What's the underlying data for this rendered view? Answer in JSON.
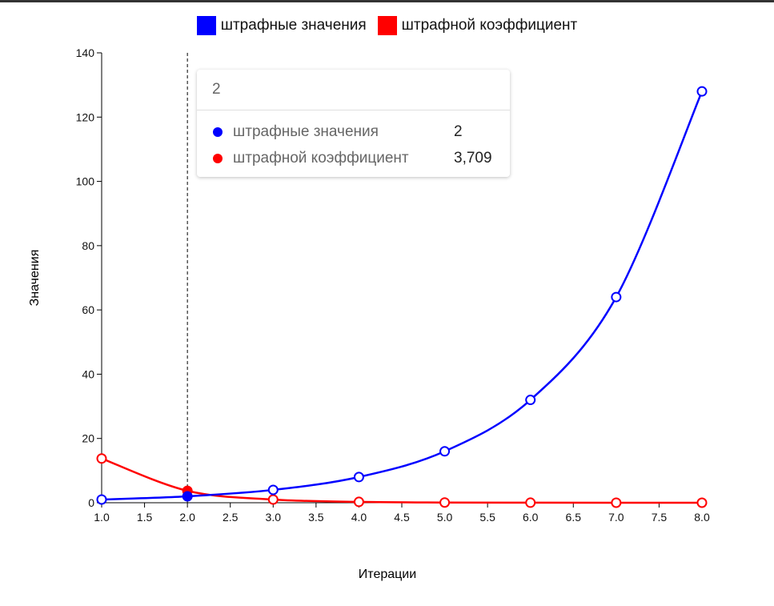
{
  "legend": {
    "series0": {
      "label": "штрафные значения",
      "color": "#0000ff"
    },
    "series1": {
      "label": "штрафной коэффициент",
      "color": "#ff0000"
    }
  },
  "tooltip": {
    "title": "2",
    "rows": [
      {
        "label": "штрафные значения",
        "value": "2",
        "color": "#0000ff"
      },
      {
        "label": "штрафной коэффициент",
        "value": "3,709",
        "color": "#ff0000"
      }
    ]
  },
  "chart_data": {
    "type": "line",
    "xlabel": "Итерации",
    "ylabel": "Значения",
    "xlim": [
      1.0,
      8.0
    ],
    "ylim": [
      0,
      140
    ],
    "x_ticks": [
      "1.0",
      "1.5",
      "2.0",
      "2.5",
      "3.0",
      "3.5",
      "4.0",
      "4.5",
      "5.0",
      "5.5",
      "6.0",
      "6.5",
      "7.0",
      "7.5",
      "8.0"
    ],
    "y_ticks": [
      "0",
      "20",
      "40",
      "60",
      "80",
      "100",
      "120",
      "140"
    ],
    "x": [
      1,
      2,
      3,
      4,
      5,
      6,
      7,
      8
    ],
    "series": [
      {
        "name": "штрафные значения",
        "color": "#0000ff",
        "values": [
          1,
          2,
          4,
          8,
          16,
          32,
          64,
          128
        ]
      },
      {
        "name": "штрафной коэффициент",
        "color": "#ff0000",
        "values": [
          13.76,
          3.709,
          1.0,
          0.27,
          0.07,
          0.02,
          0.005,
          0.0
        ]
      }
    ],
    "highlight_x": 2,
    "legend_position": "top-center",
    "grid": false
  }
}
